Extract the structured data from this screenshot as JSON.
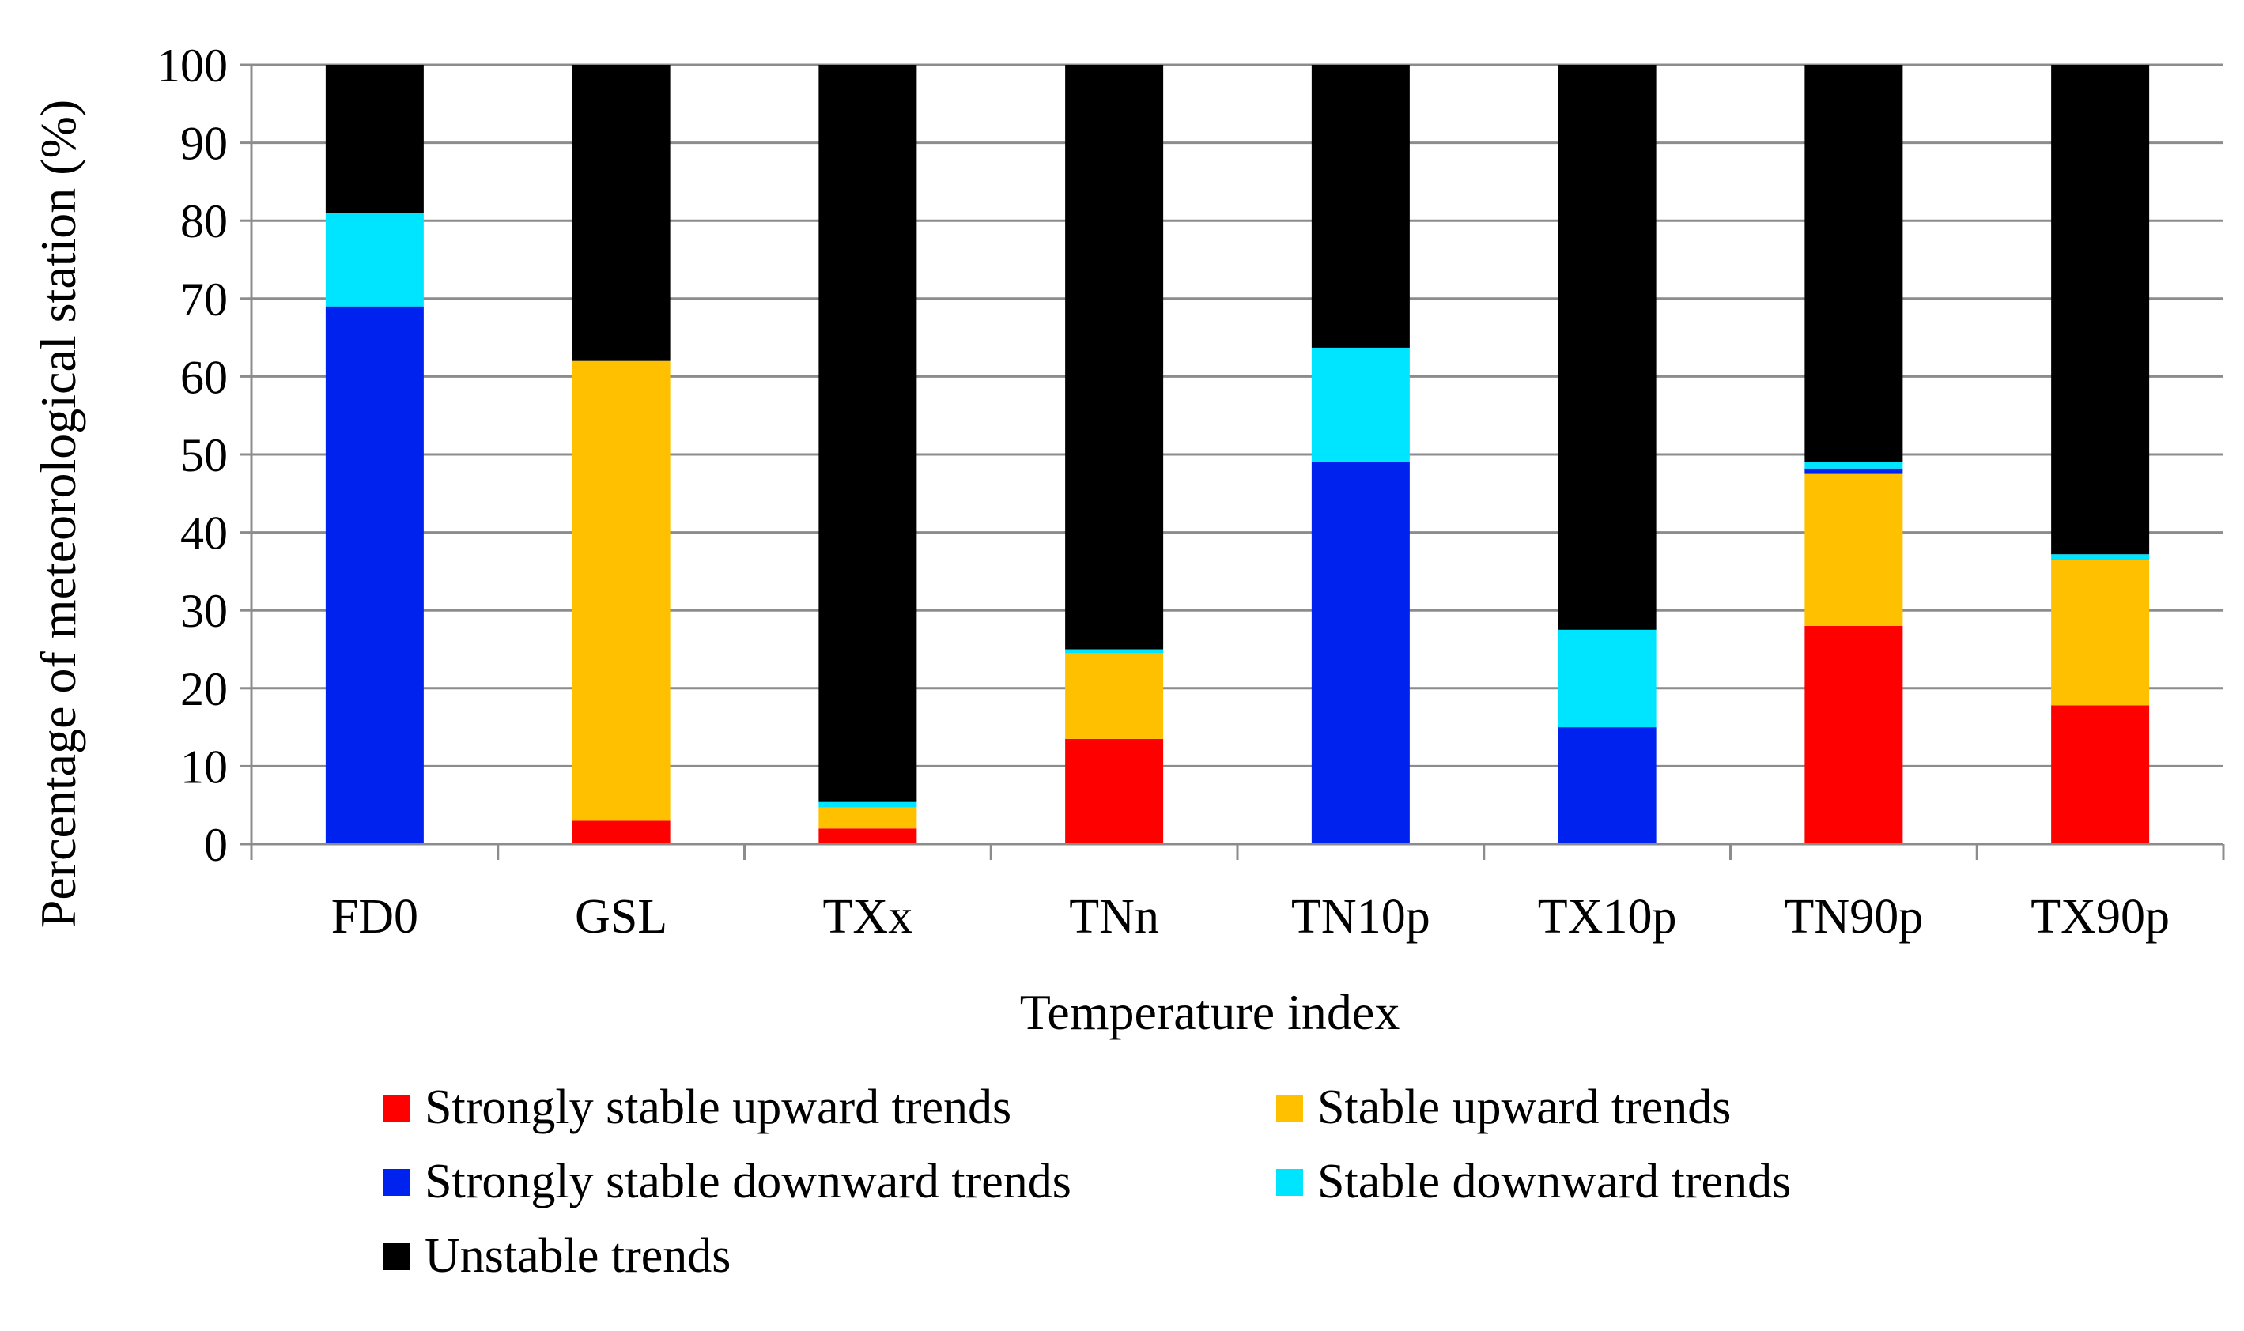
{
  "chart_data": {
    "type": "bar",
    "stacked": true,
    "title": "",
    "xlabel": "Temperature index",
    "ylabel": "Percentage of meteorological station (%)",
    "ylim": [
      0,
      100
    ],
    "yticks": [
      0,
      10,
      20,
      30,
      40,
      50,
      60,
      70,
      80,
      90,
      100
    ],
    "grid": true,
    "legend_position": "bottom",
    "categories": [
      "FD0",
      "GSL",
      "TXx",
      "TNn",
      "TN10p",
      "TX10p",
      "TN90p",
      "TX90p"
    ],
    "series": [
      {
        "name": "Strongly stable upward trends",
        "color": "#ff0000",
        "values": [
          0,
          3,
          2,
          13.5,
          0,
          0,
          28,
          17.8
        ]
      },
      {
        "name": "Stable upward trends",
        "color": "#ffc000",
        "values": [
          0,
          59,
          2.7,
          11,
          0,
          0,
          19.5,
          18.7
        ]
      },
      {
        "name": "Strongly stable downward trends",
        "color": "#0022ee",
        "values": [
          69,
          0,
          0,
          0,
          49,
          15,
          0.7,
          0
        ]
      },
      {
        "name": "Stable downward trends",
        "color": "#00e5ff",
        "values": [
          12,
          0,
          0.7,
          0.5,
          14.7,
          12.5,
          0.8,
          0.7
        ]
      },
      {
        "name": "Unstable trends",
        "color": "#000000",
        "values": [
          19,
          38,
          94.6,
          75,
          36.3,
          72.5,
          51,
          62.8
        ]
      }
    ],
    "legend_order": [
      0,
      1,
      2,
      3,
      4
    ]
  }
}
